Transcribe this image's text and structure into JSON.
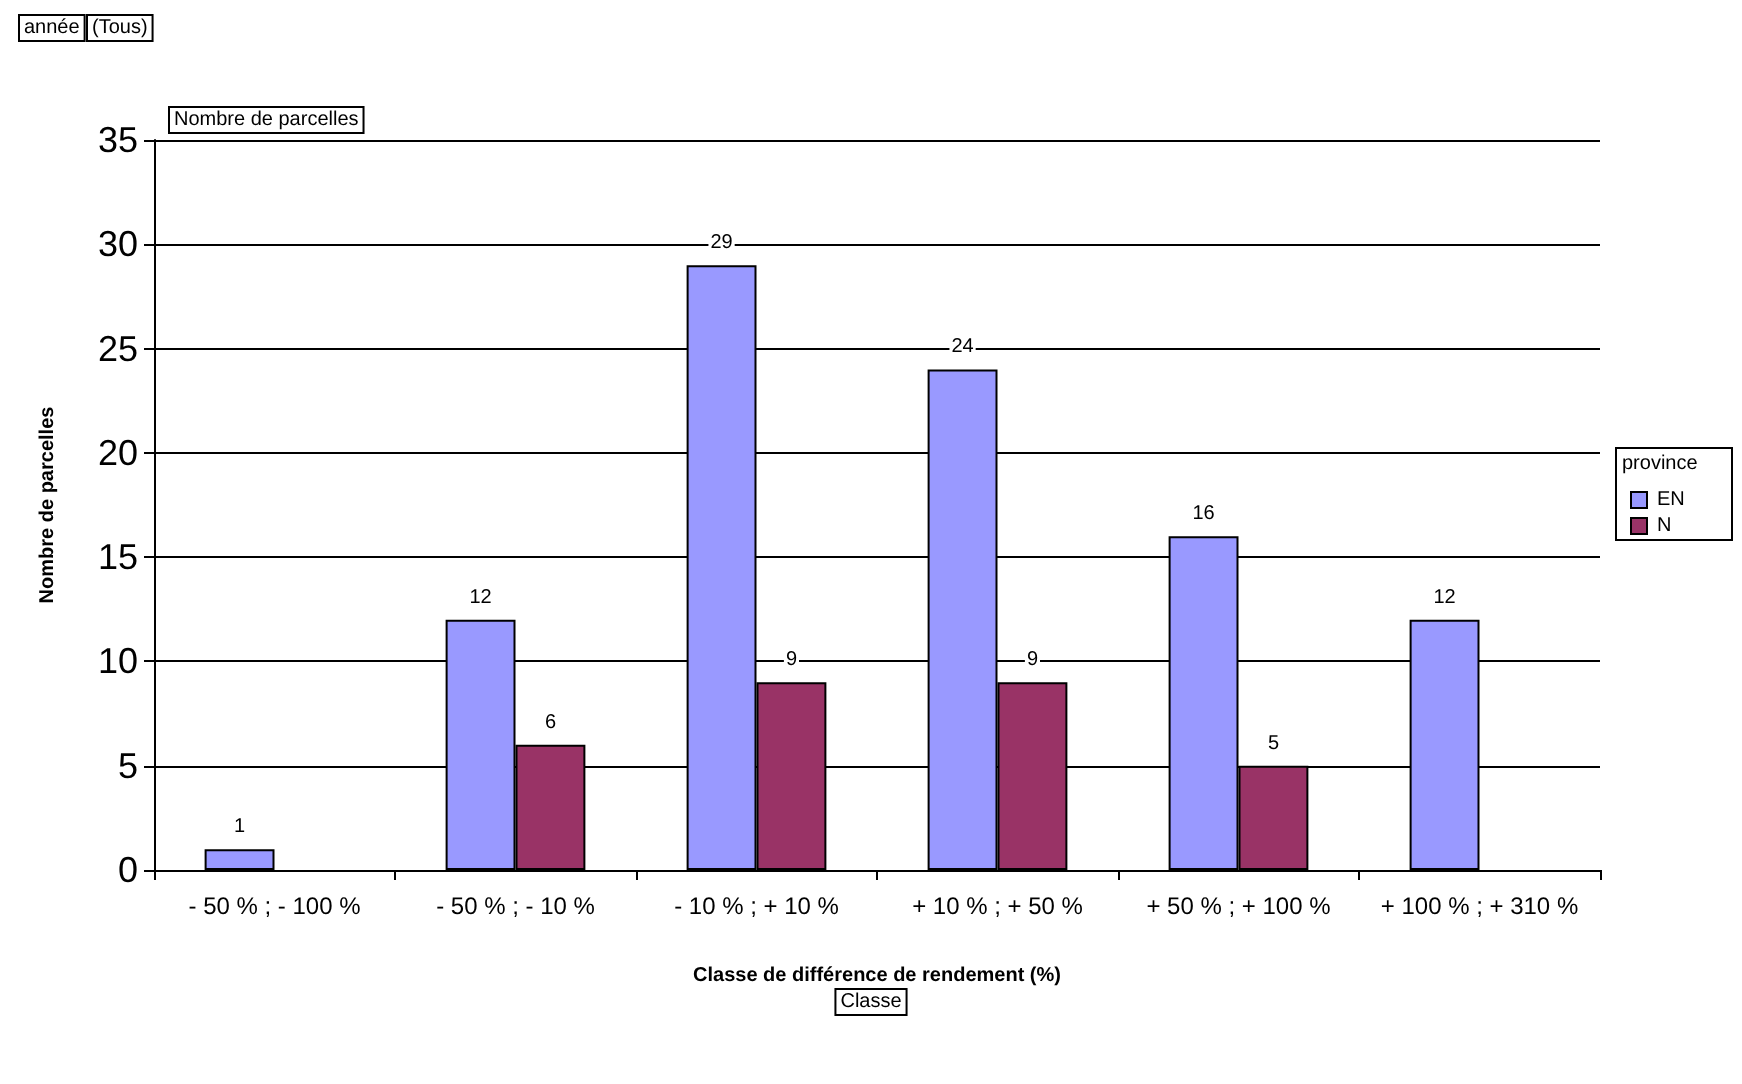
{
  "chart_data": {
    "type": "bar",
    "xlabel": "Classe de différence de rendement (%)",
    "ylabel": "Nombre de parcelles",
    "legend_title": "province",
    "categories": [
      "- 50 % ; - 100 %",
      "- 50 % ; - 10 %",
      "- 10 % ; + 10 %",
      "+ 10 % ; + 50 %",
      "+ 50 % ; + 100 %",
      "+ 100 % ; + 310 %"
    ],
    "series": [
      {
        "name": "EN",
        "color": "#9999ff",
        "values": [
          1,
          12,
          29,
          24,
          16,
          12
        ]
      },
      {
        "name": "N",
        "color": "#993366",
        "values": [
          null,
          6,
          9,
          9,
          5,
          null
        ]
      }
    ],
    "ylim": [
      0,
      35
    ],
    "yticks": [
      0,
      5,
      10,
      15,
      20,
      25,
      30,
      35
    ],
    "grid": "y",
    "legend": "right",
    "data_labels": true,
    "annotations": [
      "année",
      "(Tous)",
      "Nombre de parcelles",
      "Classe"
    ]
  }
}
